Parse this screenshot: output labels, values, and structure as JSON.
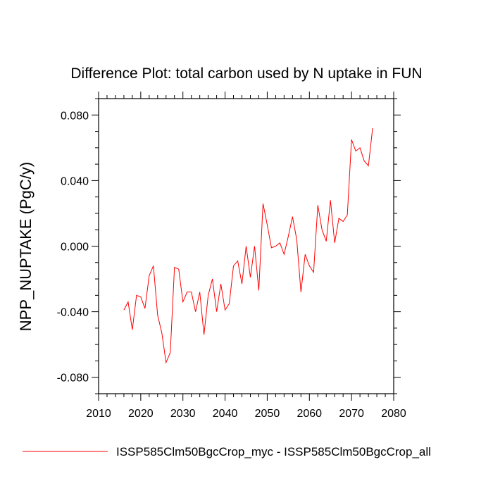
{
  "chart_data": {
    "type": "line",
    "title": "Difference Plot: total carbon used by N uptake in FUN",
    "xlabel": "",
    "ylabel": "NPP_NUPTAKE  (PgC/y)",
    "xlim": [
      2010,
      2080
    ],
    "ylim": [
      -0.09,
      0.09
    ],
    "x_ticks": [
      2010,
      2020,
      2030,
      2040,
      2050,
      2060,
      2070,
      2080
    ],
    "x_tick_labels": [
      "2010",
      "2020",
      "2030",
      "2040",
      "2050",
      "2060",
      "2070",
      "2080"
    ],
    "y_ticks": [
      -0.08,
      -0.04,
      0.0,
      0.04,
      0.08
    ],
    "y_tick_labels": [
      "-0.080",
      "-0.040",
      "0.000",
      "0.040",
      "0.080"
    ],
    "grid": false,
    "legend_position": "bottom",
    "series": [
      {
        "name": "ISSP585Clm50BgcCrop_myc - ISSP585Clm50BgcCrop_all",
        "color": "#ff0000",
        "x": [
          2016,
          2017,
          2018,
          2019,
          2020,
          2021,
          2022,
          2023,
          2024,
          2025,
          2026,
          2027,
          2028,
          2029,
          2030,
          2031,
          2032,
          2033,
          2034,
          2035,
          2036,
          2037,
          2038,
          2039,
          2040,
          2041,
          2042,
          2043,
          2044,
          2045,
          2046,
          2047,
          2048,
          2049,
          2050,
          2051,
          2052,
          2053,
          2054,
          2055,
          2056,
          2057,
          2058,
          2059,
          2060,
          2061,
          2062,
          2063,
          2064,
          2065,
          2066,
          2067,
          2068,
          2069,
          2070,
          2071,
          2072,
          2073,
          2074,
          2075
        ],
        "values": [
          -0.039,
          -0.034,
          -0.051,
          -0.03,
          -0.031,
          -0.038,
          -0.018,
          -0.012,
          -0.042,
          -0.053,
          -0.071,
          -0.065,
          -0.013,
          -0.014,
          -0.034,
          -0.028,
          -0.028,
          -0.04,
          -0.028,
          -0.054,
          -0.03,
          -0.02,
          -0.04,
          -0.023,
          -0.039,
          -0.035,
          -0.012,
          -0.009,
          -0.023,
          0.0,
          -0.019,
          0.0,
          -0.027,
          0.026,
          0.013,
          -0.001,
          0.0,
          0.002,
          -0.005,
          0.006,
          0.018,
          0.004,
          -0.028,
          -0.005,
          -0.012,
          -0.016,
          0.025,
          0.01,
          0.003,
          0.028,
          0.002,
          0.017,
          0.015,
          0.019,
          0.065,
          0.058,
          0.06,
          0.052,
          0.049,
          0.072
        ]
      }
    ]
  }
}
